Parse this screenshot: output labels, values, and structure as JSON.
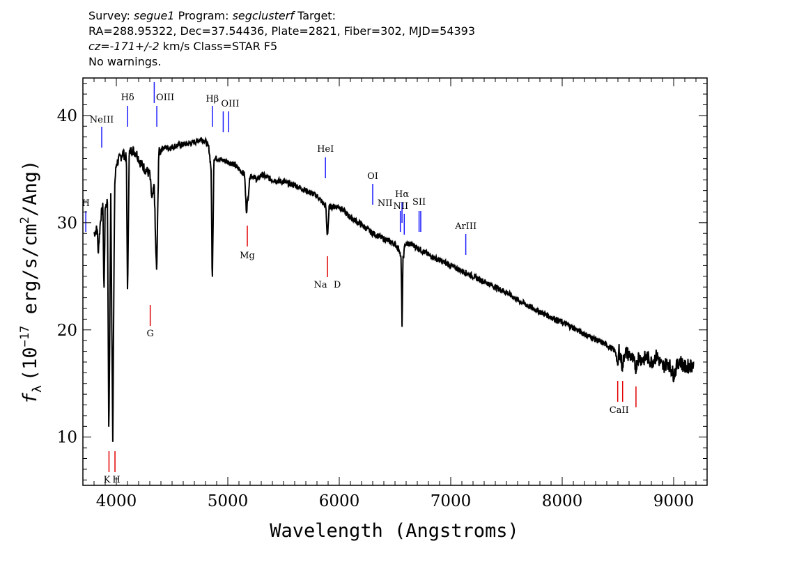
{
  "header": {
    "line1": {
      "survey_label": "Survey:",
      "survey": "segue1",
      "program_label": "Program:",
      "program": "segclusterf",
      "target_label": "Target:"
    },
    "line2": "RA=288.95322, Dec=37.54436, Plate=2821, Fiber=302, MJD=54393",
    "line3": {
      "cz": "cz=-171+/-2",
      "rest": "km/s Class=STAR F5"
    },
    "line4": "No warnings."
  },
  "chart_data": {
    "type": "line",
    "xlabel": "Wavelength (Angstroms)",
    "ylabel": "f_λ (10^-17 erg/s/cm^2/Ang)",
    "ylabel_parts": {
      "f": "f",
      "sub": "λ",
      "open": "(10",
      "exp": "−17",
      "mid": " erg/s/cm",
      "exp2": "2",
      "close": "/Ang)"
    },
    "xlim": [
      3700,
      9300
    ],
    "ylim": [
      5.5,
      43.5
    ],
    "x_ticks": [
      4000,
      5000,
      6000,
      7000,
      8000,
      9000
    ],
    "x_tick_labels": [
      "4000",
      "5000",
      "6000",
      "7000",
      "8000",
      "9000"
    ],
    "y_ticks": [
      10,
      20,
      30,
      40
    ],
    "y_tick_labels": [
      "10",
      "20",
      "30",
      "40"
    ],
    "grid": false,
    "series": [
      {
        "color": "#000000",
        "x": [
          3800,
          3830,
          3835,
          3860,
          3880,
          3889,
          3900,
          3920,
          3933,
          3950,
          3968,
          3985,
          4000,
          4030,
          4060,
          4090,
          4101,
          4115,
          4140,
          4180,
          4220,
          4260,
          4300,
          4320,
          4340,
          4350,
          4362,
          4380,
          4420,
          4480,
          4540,
          4600,
          4660,
          4720,
          4760,
          4800,
          4830,
          4850,
          4861,
          4875,
          4900,
          4960,
          5050,
          5100,
          5150,
          5167,
          5183,
          5200,
          5270,
          5300,
          5400,
          5500,
          5600,
          5700,
          5800,
          5880,
          5890,
          5896,
          5910,
          6000,
          6100,
          6200,
          6300,
          6400,
          6500,
          6540,
          6555,
          6563,
          6572,
          6590,
          6650,
          6800,
          6900,
          7000,
          7100,
          7200,
          7300,
          7400,
          7500,
          7600,
          7700,
          7800,
          7900,
          8000,
          8100,
          8200,
          8300,
          8400,
          8480,
          8498,
          8510,
          8542,
          8560,
          8620,
          8662,
          8680,
          8720,
          8760,
          8800,
          8850,
          8900,
          8950,
          9000,
          9050,
          9100,
          9180
        ],
        "y": [
          29.0,
          29.5,
          27.0,
          30.5,
          31.5,
          23.0,
          31.5,
          32.0,
          9.5,
          32.5,
          10.0,
          33.5,
          35.5,
          36.0,
          36.5,
          36.0,
          23.0,
          36.5,
          36.8,
          36.5,
          35.5,
          35.0,
          34.5,
          32.0,
          33.5,
          29.0,
          25.0,
          36.5,
          37.0,
          37.0,
          37.2,
          37.3,
          37.4,
          37.6,
          37.8,
          37.6,
          37.0,
          35.0,
          24.0,
          36.0,
          36.0,
          35.8,
          35.5,
          35.0,
          34.5,
          31.0,
          32.5,
          34.5,
          34.0,
          34.5,
          34.0,
          33.8,
          33.5,
          33.0,
          32.5,
          31.5,
          29.0,
          29.0,
          31.5,
          31.5,
          30.5,
          29.8,
          29.0,
          28.5,
          28.0,
          27.5,
          26.5,
          20.5,
          26.5,
          28.0,
          28.0,
          27.0,
          26.5,
          26.0,
          25.5,
          25.0,
          24.5,
          24.0,
          23.5,
          22.8,
          22.2,
          21.7,
          21.2,
          20.7,
          20.2,
          19.6,
          19.1,
          18.6,
          18.0,
          16.5,
          18.2,
          16.5,
          18.0,
          17.5,
          16.5,
          17.5,
          17.2,
          17.5,
          17.0,
          17.6,
          16.5,
          17.0,
          15.8,
          17.2,
          16.5,
          16.8
        ]
      }
    ],
    "emission_lines": [
      {
        "label": "H",
        "x": 3726
      },
      {
        "label": "NeIII",
        "x": 3869
      },
      {
        "label": "Hδ",
        "x": 4101
      },
      {
        "label": "",
        "x": 4340
      },
      {
        "label": "OIII",
        "x": 4363
      },
      {
        "label": "Hβ",
        "x": 4861
      },
      {
        "label": "OIII",
        "x": 4959
      },
      {
        "label": "",
        "x": 5007
      },
      {
        "label": "HeI",
        "x": 5876
      },
      {
        "label": "OI",
        "x": 6300
      },
      {
        "label": "NII",
        "x": 6548
      },
      {
        "label": "Hα",
        "x": 6563
      },
      {
        "label": "NII",
        "x": 6583
      },
      {
        "label": "SII",
        "x": 6716
      },
      {
        "label": "",
        "x": 6731
      },
      {
        "label": "ArIII",
        "x": 7135
      }
    ],
    "absorption_lines": [
      {
        "label": "K",
        "x": 3934
      },
      {
        "label": "H",
        "x": 3969
      },
      {
        "label": "G",
        "x": 4304
      },
      {
        "label": "Mg",
        "x": 5175
      },
      {
        "label": "Na",
        "x": 5894
      },
      {
        "label": "D",
        "x": 5894
      },
      {
        "label": "",
        "x": 8498
      },
      {
        "label": "CaII",
        "x": 8542
      },
      {
        "label": "",
        "x": 8662
      }
    ],
    "colors": {
      "emission": "#1a1aff",
      "absorption": "#e00000",
      "spectrum": "#000000",
      "error": "#b4b4b4"
    }
  }
}
